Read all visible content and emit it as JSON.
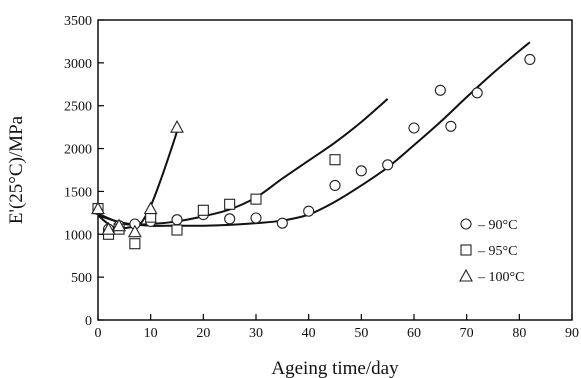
{
  "chart_data": {
    "type": "scatter",
    "xlabel": "Ageing time/day",
    "ylabel": "E'(25°C)/MPa",
    "xlim": [
      0,
      90
    ],
    "ylim": [
      0,
      3500
    ],
    "x_ticks": [
      "0",
      "10",
      "20",
      "30",
      "40",
      "50",
      "60",
      "70",
      "80",
      "90"
    ],
    "y_ticks": [
      "0",
      "500",
      "1000",
      "1500",
      "2000",
      "2500",
      "3000",
      "3500"
    ],
    "grid": false,
    "legend_position": "right",
    "series": [
      {
        "name": "90°C",
        "marker": "circle",
        "points": [
          [
            0,
            1290
          ],
          [
            2,
            1060
          ],
          [
            4,
            1100
          ],
          [
            7,
            1120
          ],
          [
            10,
            1150
          ],
          [
            15,
            1170
          ],
          [
            20,
            1230
          ],
          [
            25,
            1180
          ],
          [
            30,
            1190
          ],
          [
            35,
            1130
          ],
          [
            40,
            1270
          ],
          [
            45,
            1570
          ],
          [
            50,
            1740
          ],
          [
            55,
            1810
          ],
          [
            60,
            2240
          ],
          [
            65,
            2680
          ],
          [
            67,
            2260
          ],
          [
            72,
            2650
          ],
          [
            82,
            3040
          ]
        ],
        "fit": [
          [
            0,
            1220
          ],
          [
            5,
            1130
          ],
          [
            10,
            1100
          ],
          [
            15,
            1100
          ],
          [
            20,
            1100
          ],
          [
            25,
            1110
          ],
          [
            30,
            1130
          ],
          [
            35,
            1160
          ],
          [
            40,
            1230
          ],
          [
            45,
            1380
          ],
          [
            50,
            1570
          ],
          [
            55,
            1780
          ],
          [
            60,
            2040
          ],
          [
            65,
            2310
          ],
          [
            70,
            2600
          ],
          [
            75,
            2880
          ],
          [
            80,
            3140
          ],
          [
            82,
            3240
          ]
        ]
      },
      {
        "name": "95°C",
        "marker": "square",
        "points": [
          [
            0,
            1300
          ],
          [
            2,
            1000
          ],
          [
            4,
            1060
          ],
          [
            7,
            890
          ],
          [
            10,
            1200
          ],
          [
            15,
            1050
          ],
          [
            20,
            1280
          ],
          [
            25,
            1350
          ],
          [
            30,
            1410
          ],
          [
            45,
            1870
          ]
        ],
        "fit": [
          [
            0,
            1240
          ],
          [
            5,
            1120
          ],
          [
            10,
            1120
          ],
          [
            15,
            1150
          ],
          [
            20,
            1210
          ],
          [
            25,
            1290
          ],
          [
            30,
            1430
          ],
          [
            35,
            1650
          ],
          [
            40,
            1860
          ],
          [
            45,
            2070
          ],
          [
            50,
            2310
          ],
          [
            55,
            2580
          ]
        ]
      },
      {
        "name": "100°C",
        "marker": "triangle",
        "points": [
          [
            0,
            1300
          ],
          [
            2,
            1060
          ],
          [
            4,
            1100
          ],
          [
            7,
            1030
          ],
          [
            10,
            1300
          ],
          [
            15,
            2250
          ]
        ],
        "fit": [
          [
            0,
            1220
          ],
          [
            3,
            1080
          ],
          [
            6,
            1080
          ],
          [
            8,
            1120
          ],
          [
            10,
            1330
          ],
          [
            12,
            1650
          ],
          [
            14,
            2010
          ],
          [
            15,
            2200
          ]
        ]
      }
    ],
    "legend": [
      {
        "marker": "circle",
        "label": "– 90°C"
      },
      {
        "marker": "square",
        "label": "– 95°C"
      },
      {
        "marker": "triangle",
        "label": "– 100°C"
      }
    ]
  }
}
